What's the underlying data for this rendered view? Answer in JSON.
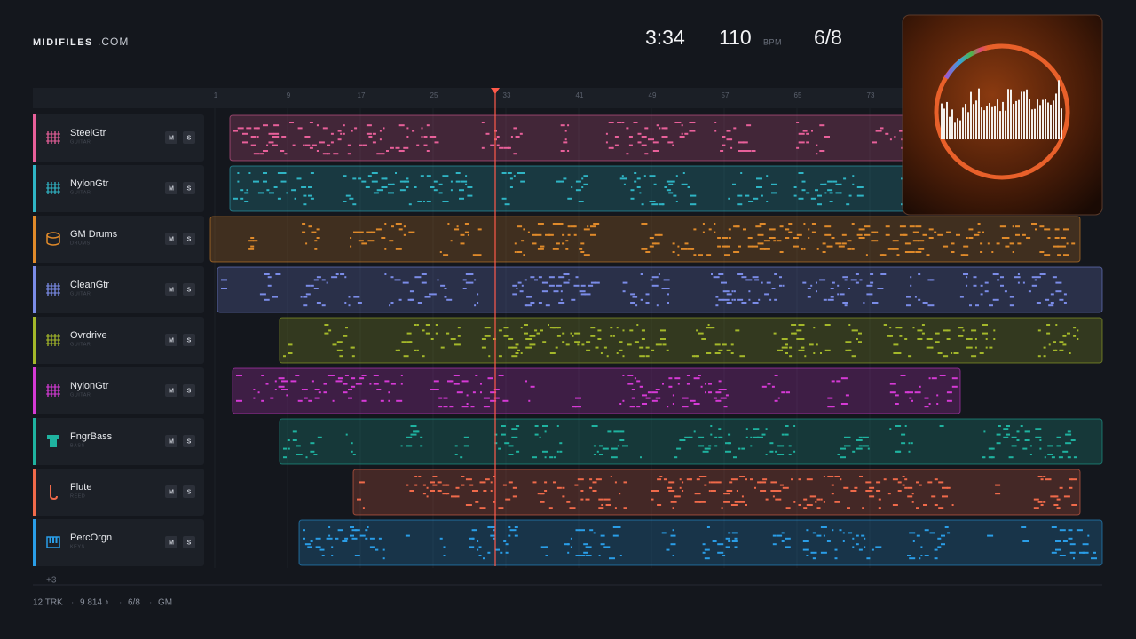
{
  "header": {
    "logo": "MIDIFILES",
    "logo_suffix": ".COM",
    "time": "3:34",
    "tempo": "110",
    "tempo_unit": "BPM",
    "meter": "6/8"
  },
  "ruler": [
    "1",
    "9",
    "17",
    "25",
    "33",
    "41",
    "49",
    "57",
    "65",
    "73"
  ],
  "tracks": [
    {
      "name": "SteelGtr",
      "category": "GUITAR"
    },
    {
      "name": "NylonGtr",
      "category": "GUITAR"
    },
    {
      "name": "GM Drums",
      "category": "DRUMS"
    },
    {
      "name": "CleanGtr",
      "category": "GUITAR"
    },
    {
      "name": "Ovrdrive",
      "category": "GUITAR"
    },
    {
      "name": "NylonGtr",
      "category": "GUITAR"
    },
    {
      "name": "FngrBass",
      "category": "BASS"
    },
    {
      "name": "Flute",
      "category": "REED"
    },
    {
      "name": "PercOrgn",
      "category": "KEYS"
    }
  ],
  "buttons": {
    "mute": "M",
    "solo": "S"
  },
  "more_tracks": "+3",
  "footer": {
    "items": [
      "12 TRK",
      "9 814 ♪",
      "6/8",
      "GM"
    ],
    "separator": "·"
  }
}
